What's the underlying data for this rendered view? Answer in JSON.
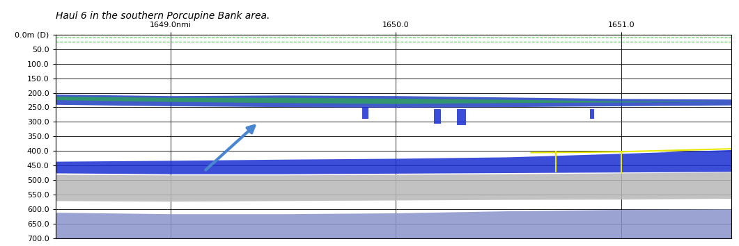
{
  "chart_data": {
    "type": "echogram",
    "title": "Haul 6 in the southern Porcupine Bank area.",
    "xlim": [
      1648.49,
      1651.49
    ],
    "xticks": [
      {
        "value": 1649,
        "label": "1649.0nmi"
      },
      {
        "value": 1650,
        "label": "1650.0"
      },
      {
        "value": 1651,
        "label": "1651.0"
      }
    ],
    "ylim": [
      700,
      0
    ],
    "yticks": [
      {
        "value": 0,
        "label": "0.0m (D)"
      },
      {
        "value": 50,
        "label": "50.0"
      },
      {
        "value": 100,
        "label": "100.0"
      },
      {
        "value": 150,
        "label": "150.0"
      },
      {
        "value": 200,
        "label": "200.0"
      },
      {
        "value": 250,
        "label": "250.0"
      },
      {
        "value": 300,
        "label": "300.0"
      },
      {
        "value": 350,
        "label": "350.0"
      },
      {
        "value": 400,
        "label": "400.0"
      },
      {
        "value": 450,
        "label": "450.0"
      },
      {
        "value": 500,
        "label": "500.0"
      },
      {
        "value": 550,
        "label": "550.0"
      },
      {
        "value": 600,
        "label": "600.0"
      },
      {
        "value": 650,
        "label": "650.0"
      },
      {
        "value": 700,
        "label": "700.0"
      }
    ],
    "grid": true,
    "series": [
      {
        "type": "band",
        "color": "#b8b8b8",
        "x": [
          1648.49,
          1649.0,
          1649.5,
          1650.0,
          1650.5,
          1651.0,
          1651.49
        ],
        "top": [
          480,
          482,
          482,
          480,
          478,
          475,
          472
        ],
        "bottom": [
          570,
          572,
          570,
          568,
          566,
          565,
          562
        ]
      },
      {
        "type": "band",
        "color": "#8a93cc",
        "x": [
          1648.49,
          1649.0,
          1649.5,
          1650.0,
          1650.5,
          1651.0,
          1651.49
        ],
        "top": [
          610,
          615,
          615,
          612,
          605,
          600,
          598
        ],
        "bottom": [
          700,
          700,
          700,
          700,
          700,
          700,
          700
        ]
      },
      {
        "type": "band",
        "color": "#1a2fd0",
        "x": [
          1648.49,
          1649.0,
          1649.5,
          1650.0,
          1650.5,
          1651.0,
          1651.49
        ],
        "top": [
          435,
          432,
          428,
          425,
          420,
          408,
          395
        ],
        "bottom": [
          475,
          478,
          478,
          476,
          474,
          472,
          470
        ]
      },
      {
        "type": "band",
        "color": "#1f3fbf",
        "x": [
          1648.49,
          1649.0,
          1649.5,
          1650.0,
          1650.5,
          1651.0,
          1651.49
        ],
        "top": [
          205,
          210,
          208,
          210,
          215,
          220,
          222
        ],
        "bottom": [
          240,
          245,
          248,
          250,
          248,
          245,
          242
        ]
      },
      {
        "type": "band",
        "color": "#2fa060",
        "x": [
          1648.49,
          1649.0,
          1649.5,
          1650.0,
          1650.5,
          1651.0,
          1651.49
        ],
        "top": [
          212,
          216,
          216,
          219,
          223,
          228,
          230
        ],
        "bottom": [
          224,
          230,
          234,
          237,
          234,
          232,
          230
        ]
      },
      {
        "type": "band",
        "color": "#1a2fd0",
        "x": [
          1649.85,
          1649.88
        ],
        "top": [
          250,
          250
        ],
        "bottom": [
          290,
          290
        ]
      },
      {
        "type": "band",
        "color": "#1a2fd0",
        "x": [
          1650.17,
          1650.2
        ],
        "top": [
          255,
          255
        ],
        "bottom": [
          305,
          305
        ]
      },
      {
        "type": "band",
        "color": "#1a2fd0",
        "x": [
          1650.27,
          1650.31
        ],
        "top": [
          255,
          255
        ],
        "bottom": [
          310,
          310
        ]
      },
      {
        "type": "band",
        "color": "#1a2fd0",
        "x": [
          1650.86,
          1650.88
        ],
        "top": [
          255,
          255
        ],
        "bottom": [
          290,
          290
        ]
      },
      {
        "type": "line",
        "color": "#e8e800",
        "x": [
          1650.6,
          1650.8,
          1651.0,
          1651.2,
          1651.49
        ],
        "values": [
          405,
          404,
          402,
          398,
          392
        ]
      },
      {
        "type": "line",
        "color": "#e8e800",
        "x": [
          1650.71,
          1650.71
        ],
        "values": [
          402,
          470
        ]
      },
      {
        "type": "line",
        "color": "#e8e800",
        "x": [
          1651.0,
          1651.0
        ],
        "values": [
          402,
          475
        ]
      }
    ]
  }
}
